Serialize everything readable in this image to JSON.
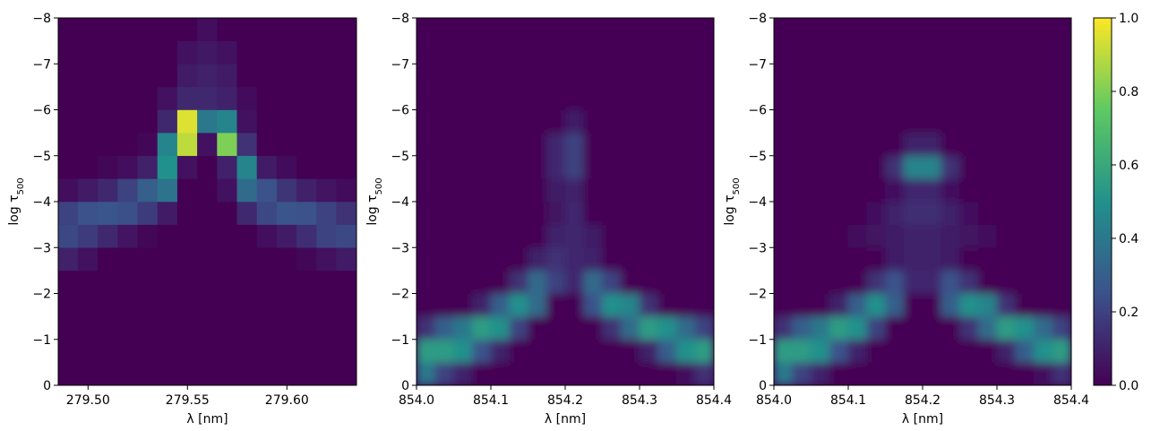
{
  "chart_data": [
    {
      "type": "heatmap",
      "x": [
        279.49,
        279.5,
        279.51,
        279.52,
        279.53,
        279.54,
        279.55,
        279.56,
        279.57,
        279.58,
        279.59,
        279.6,
        279.61,
        279.62,
        279.63
      ],
      "y": [
        -0.25,
        -0.75,
        -1.25,
        -1.75,
        -2.25,
        -2.75,
        -3.25,
        -3.75,
        -4.25,
        -4.75,
        -5.25,
        -5.75,
        -6.25,
        -6.75,
        -7.25,
        -7.75
      ],
      "z": [
        [
          0,
          0,
          0,
          0,
          0,
          0,
          0,
          0,
          0,
          0,
          0,
          0,
          0,
          0,
          0
        ],
        [
          0,
          0,
          0,
          0,
          0,
          0,
          0,
          0,
          0,
          0,
          0,
          0,
          0,
          0,
          0
        ],
        [
          0,
          0,
          0,
          0,
          0,
          0,
          0,
          0,
          0,
          0,
          0,
          0,
          0,
          0,
          0
        ],
        [
          0,
          0,
          0,
          0,
          0,
          0,
          0,
          0,
          0,
          0,
          0,
          0,
          0,
          0,
          0
        ],
        [
          0,
          0,
          0,
          0,
          0,
          0,
          0,
          0,
          0,
          0,
          0,
          0,
          0,
          0,
          0
        ],
        [
          0.1,
          0.05,
          0,
          0,
          0,
          0,
          0,
          0,
          0,
          0,
          0,
          0,
          0.02,
          0.05,
          0.08
        ],
        [
          0.22,
          0.18,
          0.12,
          0.06,
          0.02,
          0,
          0,
          0,
          0,
          0,
          0.04,
          0.08,
          0.14,
          0.2,
          0.22
        ],
        [
          0.2,
          0.25,
          0.26,
          0.24,
          0.18,
          0.08,
          0,
          0,
          0,
          0.12,
          0.22,
          0.26,
          0.25,
          0.2,
          0.15
        ],
        [
          0.04,
          0.08,
          0.12,
          0.2,
          0.3,
          0.38,
          0,
          0,
          0.05,
          0.35,
          0.25,
          0.16,
          0.1,
          0.06,
          0.03
        ],
        [
          0,
          0,
          0.02,
          0.04,
          0.1,
          0.5,
          0.05,
          0,
          0.1,
          0.45,
          0.08,
          0.03,
          0,
          0,
          0
        ],
        [
          0,
          0,
          0,
          0,
          0.02,
          0.45,
          0.9,
          0.05,
          0.8,
          0.15,
          0,
          0,
          0,
          0,
          0
        ],
        [
          0,
          0,
          0,
          0,
          0,
          0.12,
          0.95,
          0.4,
          0.45,
          0.05,
          0,
          0,
          0,
          0,
          0
        ],
        [
          0,
          0,
          0,
          0,
          0,
          0.05,
          0.12,
          0.12,
          0.1,
          0.03,
          0,
          0,
          0,
          0,
          0
        ],
        [
          0,
          0,
          0,
          0,
          0,
          0,
          0.08,
          0.1,
          0.08,
          0,
          0,
          0,
          0,
          0,
          0
        ],
        [
          0,
          0,
          0,
          0,
          0,
          0,
          0.05,
          0.07,
          0.05,
          0,
          0,
          0,
          0,
          0,
          0
        ],
        [
          0,
          0,
          0,
          0,
          0,
          0,
          0,
          0.04,
          0,
          0,
          0,
          0,
          0,
          0,
          0
        ]
      ],
      "xlim": [
        279.485,
        279.635
      ],
      "ylim": [
        0,
        -8
      ],
      "xticks": [
        {
          "value": 279.5,
          "label": "279.50"
        },
        279.55,
        {
          "value": 279.6,
          "label": "279.60"
        }
      ],
      "yticks": [
        0,
        {
          "value": -1,
          "label": "−1"
        },
        {
          "value": -2,
          "label": "−2"
        },
        {
          "value": -3,
          "label": "−3"
        },
        {
          "value": -4,
          "label": "−4"
        },
        {
          "value": -5,
          "label": "−5"
        },
        {
          "value": -6,
          "label": "−6"
        },
        {
          "value": -7,
          "label": "−7"
        },
        {
          "value": -8,
          "label": "−8"
        }
      ],
      "xlabel": "λ [nm]",
      "ylabel": {
        "text": "log τ",
        "subscript": "500"
      },
      "interpolation": "nearest"
    },
    {
      "type": "heatmap",
      "x": [
        854.0125,
        854.0375,
        854.0625,
        854.0875,
        854.1125,
        854.1375,
        854.1625,
        854.1875,
        854.2125,
        854.2375,
        854.2625,
        854.2875,
        854.3125,
        854.3375,
        854.3625,
        854.3875
      ],
      "y": [
        -0.25,
        -0.75,
        -1.25,
        -1.75,
        -2.25,
        -2.75,
        -3.25,
        -3.75,
        -4.25,
        -4.75,
        -5.25,
        -5.75,
        -6.25,
        -6.75,
        -7.25,
        -7.75
      ],
      "z": [
        [
          0.4,
          0.2,
          0.1,
          0,
          0,
          0,
          0,
          0,
          0,
          0,
          0,
          0,
          0,
          0,
          0.05,
          0.15
        ],
        [
          0.55,
          0.55,
          0.5,
          0.25,
          0.1,
          0,
          0,
          0,
          0,
          0,
          0,
          0,
          0.1,
          0.3,
          0.5,
          0.55
        ],
        [
          0.15,
          0.3,
          0.4,
          0.55,
          0.5,
          0.2,
          0,
          0,
          0,
          0,
          0.15,
          0.35,
          0.55,
          0.5,
          0.35,
          0.2
        ],
        [
          0,
          0,
          0,
          0.1,
          0.3,
          0.5,
          0.35,
          0,
          0,
          0.25,
          0.5,
          0.45,
          0.15,
          0,
          0,
          0
        ],
        [
          0,
          0,
          0,
          0,
          0,
          0.15,
          0.35,
          0.2,
          0.12,
          0.35,
          0.2,
          0,
          0,
          0,
          0,
          0
        ],
        [
          0,
          0,
          0,
          0,
          0,
          0,
          0.1,
          0.15,
          0.12,
          0.1,
          0,
          0,
          0,
          0,
          0,
          0
        ],
        [
          0,
          0,
          0,
          0,
          0,
          0,
          0,
          0.1,
          0.12,
          0.08,
          0,
          0,
          0,
          0,
          0,
          0
        ],
        [
          0,
          0,
          0,
          0,
          0,
          0,
          0,
          0.06,
          0.12,
          0,
          0,
          0,
          0,
          0,
          0,
          0
        ],
        [
          0,
          0,
          0,
          0,
          0,
          0,
          0,
          0.08,
          0.1,
          0,
          0,
          0,
          0,
          0,
          0,
          0
        ],
        [
          0,
          0,
          0,
          0,
          0,
          0,
          0,
          0.12,
          0.2,
          0,
          0,
          0,
          0,
          0,
          0,
          0
        ],
        [
          0,
          0,
          0,
          0,
          0,
          0,
          0,
          0.12,
          0.2,
          0,
          0,
          0,
          0,
          0,
          0,
          0
        ],
        [
          0,
          0,
          0,
          0,
          0,
          0,
          0,
          0,
          0.08,
          0,
          0,
          0,
          0,
          0,
          0,
          0
        ],
        [
          0,
          0,
          0,
          0,
          0,
          0,
          0,
          0,
          0,
          0,
          0,
          0,
          0,
          0,
          0,
          0
        ],
        [
          0,
          0,
          0,
          0,
          0,
          0,
          0,
          0,
          0,
          0,
          0,
          0,
          0,
          0,
          0,
          0
        ],
        [
          0,
          0,
          0,
          0,
          0,
          0,
          0,
          0,
          0,
          0,
          0,
          0,
          0,
          0,
          0,
          0
        ],
        [
          0,
          0,
          0,
          0,
          0,
          0,
          0,
          0,
          0,
          0,
          0,
          0,
          0,
          0,
          0,
          0
        ]
      ],
      "xlim": [
        854.0,
        854.4
      ],
      "ylim": [
        0,
        -8
      ],
      "xticks": [
        {
          "value": 854.0,
          "label": "854.0"
        },
        854.1,
        854.2,
        854.3,
        854.4
      ],
      "yticks": [
        0,
        {
          "value": -1,
          "label": "−1"
        },
        {
          "value": -2,
          "label": "−2"
        },
        {
          "value": -3,
          "label": "−3"
        },
        {
          "value": -4,
          "label": "−4"
        },
        {
          "value": -5,
          "label": "−5"
        },
        {
          "value": -6,
          "label": "−6"
        },
        {
          "value": -7,
          "label": "−7"
        },
        {
          "value": -8,
          "label": "−8"
        }
      ],
      "xlabel": "λ [nm]",
      "ylabel": {
        "text": "log τ",
        "subscript": "500"
      },
      "interpolation": "smooth"
    },
    {
      "type": "heatmap",
      "x": [
        854.0125,
        854.0375,
        854.0625,
        854.0875,
        854.1125,
        854.1375,
        854.1625,
        854.1875,
        854.2125,
        854.2375,
        854.2625,
        854.2875,
        854.3125,
        854.3375,
        854.3625,
        854.3875
      ],
      "y": [
        -0.25,
        -0.75,
        -1.25,
        -1.75,
        -2.25,
        -2.75,
        -3.25,
        -3.75,
        -4.25,
        -4.75,
        -5.25,
        -5.75,
        -6.25,
        -6.75,
        -7.25,
        -7.75
      ],
      "z": [
        [
          0.4,
          0.2,
          0.1,
          0,
          0,
          0,
          0,
          0,
          0,
          0,
          0,
          0,
          0,
          0,
          0.05,
          0.15
        ],
        [
          0.55,
          0.55,
          0.5,
          0.25,
          0.1,
          0,
          0,
          0,
          0,
          0,
          0,
          0,
          0.1,
          0.3,
          0.5,
          0.55
        ],
        [
          0.15,
          0.3,
          0.4,
          0.55,
          0.5,
          0.2,
          0,
          0,
          0,
          0,
          0.15,
          0.35,
          0.55,
          0.5,
          0.35,
          0.2
        ],
        [
          0,
          0,
          0,
          0.1,
          0.3,
          0.5,
          0.3,
          0,
          0,
          0.3,
          0.5,
          0.45,
          0.15,
          0,
          0,
          0
        ],
        [
          0,
          0,
          0,
          0,
          0,
          0.15,
          0.25,
          0.12,
          0.12,
          0.25,
          0.15,
          0,
          0,
          0,
          0,
          0
        ],
        [
          0,
          0,
          0,
          0,
          0,
          0,
          0.08,
          0.1,
          0.1,
          0.08,
          0,
          0,
          0,
          0,
          0,
          0
        ],
        [
          0,
          0,
          0,
          0,
          0.04,
          0.06,
          0.08,
          0.1,
          0.1,
          0.08,
          0.06,
          0.04,
          0,
          0,
          0,
          0
        ],
        [
          0,
          0,
          0,
          0,
          0,
          0.05,
          0.1,
          0.14,
          0.14,
          0.1,
          0.05,
          0,
          0,
          0,
          0,
          0
        ],
        [
          0,
          0,
          0,
          0,
          0,
          0,
          0.05,
          0.12,
          0.12,
          0.05,
          0,
          0,
          0,
          0,
          0,
          0
        ],
        [
          0,
          0,
          0,
          0,
          0,
          0,
          0.15,
          0.45,
          0.45,
          0.15,
          0,
          0,
          0,
          0,
          0,
          0
        ],
        [
          0,
          0,
          0,
          0,
          0,
          0,
          0,
          0.1,
          0.1,
          0,
          0,
          0,
          0,
          0,
          0,
          0
        ],
        [
          0,
          0,
          0,
          0,
          0,
          0,
          0,
          0,
          0,
          0,
          0,
          0,
          0,
          0,
          0,
          0
        ],
        [
          0,
          0,
          0,
          0,
          0,
          0,
          0,
          0,
          0,
          0,
          0,
          0,
          0,
          0,
          0,
          0
        ],
        [
          0,
          0,
          0,
          0,
          0,
          0,
          0,
          0,
          0,
          0,
          0,
          0,
          0,
          0,
          0,
          0
        ],
        [
          0,
          0,
          0,
          0,
          0,
          0,
          0,
          0,
          0,
          0,
          0,
          0,
          0,
          0,
          0,
          0
        ],
        [
          0,
          0,
          0,
          0,
          0,
          0,
          0,
          0,
          0,
          0,
          0,
          0,
          0,
          0,
          0,
          0
        ]
      ],
      "xlim": [
        854.0,
        854.4
      ],
      "ylim": [
        0,
        -8
      ],
      "xticks": [
        {
          "value": 854.0,
          "label": "854.0"
        },
        854.1,
        854.2,
        854.3,
        854.4
      ],
      "yticks": [
        0,
        {
          "value": -1,
          "label": "−1"
        },
        {
          "value": -2,
          "label": "−2"
        },
        {
          "value": -3,
          "label": "−3"
        },
        {
          "value": -4,
          "label": "−4"
        },
        {
          "value": -5,
          "label": "−5"
        },
        {
          "value": -6,
          "label": "−6"
        },
        {
          "value": -7,
          "label": "−7"
        },
        {
          "value": -8,
          "label": "−8"
        }
      ],
      "xlabel": "λ [nm]",
      "ylabel": {
        "text": "log τ",
        "subscript": "500"
      },
      "interpolation": "smooth"
    }
  ],
  "colorbar": {
    "clim": [
      0,
      1
    ],
    "ticks": [
      {
        "value": 0,
        "label": "0.0"
      },
      0.2,
      0.4,
      0.6,
      0.8,
      {
        "value": 1,
        "label": "1.0"
      }
    ],
    "colors": [
      "#440154",
      "#3b528b",
      "#21918c",
      "#5ec962",
      "#fde725"
    ]
  }
}
